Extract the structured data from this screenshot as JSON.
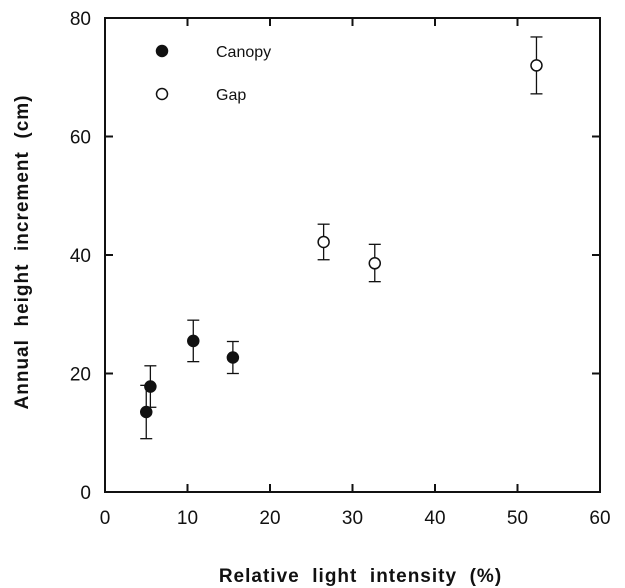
{
  "chart_data": {
    "type": "scatter",
    "title": "",
    "xlabel": "Relative  light  intensity  (%)",
    "ylabel": "Annual  height  increment  (cm)",
    "xlim": [
      0,
      60
    ],
    "ylim": [
      0,
      80
    ],
    "xticks": [
      "0",
      "10",
      "20",
      "30",
      "40",
      "50",
      "60"
    ],
    "yticks": [
      "0",
      "20",
      "40",
      "60",
      "80"
    ],
    "grid": false,
    "legend_position": "top-left",
    "series": [
      {
        "name": "Canopy",
        "marker": "filled-circle",
        "color": "#111111",
        "points": [
          {
            "x": 5.0,
            "y": 13.5,
            "err_low": 9.0,
            "err_high": 18.0
          },
          {
            "x": 5.5,
            "y": 17.8,
            "err_low": 14.3,
            "err_high": 21.3
          },
          {
            "x": 10.7,
            "y": 25.5,
            "err_low": 22.0,
            "err_high": 29.0
          },
          {
            "x": 15.5,
            "y": 22.7,
            "err_low": 20.0,
            "err_high": 25.4
          }
        ]
      },
      {
        "name": "Gap",
        "marker": "open-circle",
        "color": "#111111",
        "points": [
          {
            "x": 26.5,
            "y": 42.2,
            "err_low": 39.2,
            "err_high": 45.2
          },
          {
            "x": 32.7,
            "y": 38.6,
            "err_low": 35.5,
            "err_high": 41.8
          },
          {
            "x": 52.3,
            "y": 72.0,
            "err_low": 67.2,
            "err_high": 76.8
          }
        ]
      }
    ]
  }
}
